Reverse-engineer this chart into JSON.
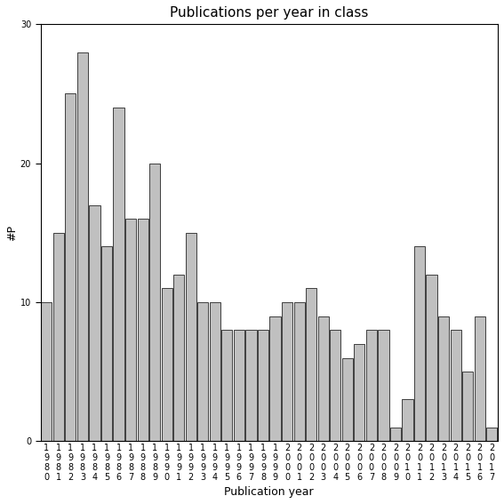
{
  "title": "Publications per year in class",
  "xlabel": "Publication year",
  "ylabel": "#P",
  "years": [
    "1980",
    "1981",
    "1982",
    "1983",
    "1984",
    "1985",
    "1986",
    "1987",
    "1988",
    "1989",
    "1990",
    "1991",
    "1992",
    "1993",
    "1994",
    "1995",
    "1996",
    "1997",
    "1998",
    "1999",
    "2000",
    "2001",
    "2002",
    "2003",
    "2004",
    "2005",
    "2006",
    "2007",
    "2008",
    "2009",
    "2010",
    "2011",
    "2012",
    "2013",
    "2014",
    "2015",
    "2016",
    "2017"
  ],
  "values": [
    10,
    15,
    25,
    28,
    17,
    14,
    24,
    16,
    16,
    20,
    11,
    12,
    15,
    10,
    10,
    8,
    8,
    8,
    8,
    9,
    10,
    10,
    11,
    9,
    8,
    6,
    7,
    8,
    8,
    1,
    3,
    14,
    12,
    9,
    8,
    5,
    9,
    1
  ],
  "bar_color": "#c0c0c0",
  "bar_edgecolor": "#000000",
  "bar_linewidth": 0.5,
  "ylim": [
    0,
    30
  ],
  "yticks": [
    0,
    10,
    20,
    30
  ],
  "background_color": "#ffffff",
  "title_fontsize": 11,
  "axis_label_fontsize": 9,
  "tick_fontsize": 7,
  "figsize": [
    5.67,
    5.67
  ],
  "dpi": 100
}
